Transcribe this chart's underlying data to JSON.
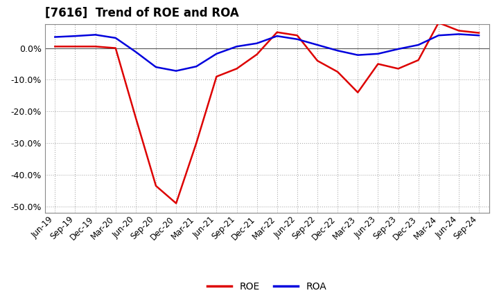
{
  "title": "[7616]  Trend of ROE and ROA",
  "labels": [
    "Jun-19",
    "Sep-19",
    "Dec-19",
    "Mar-20",
    "Jun-20",
    "Sep-20",
    "Dec-20",
    "Mar-21",
    "Jun-21",
    "Sep-21",
    "Dec-21",
    "Mar-22",
    "Jun-22",
    "Sep-22",
    "Dec-22",
    "Mar-23",
    "Jun-23",
    "Sep-23",
    "Dec-23",
    "Mar-24",
    "Jun-24",
    "Sep-24"
  ],
  "ROE": [
    0.005,
    0.005,
    0.005,
    0.0,
    -0.22,
    -0.435,
    -0.49,
    -0.3,
    -0.09,
    -0.065,
    -0.02,
    0.05,
    0.04,
    -0.04,
    -0.075,
    -0.14,
    -0.05,
    -0.065,
    -0.038,
    0.08,
    0.055,
    0.048
  ],
  "ROA": [
    0.035,
    0.038,
    0.042,
    0.032,
    -0.012,
    -0.06,
    -0.072,
    -0.058,
    -0.018,
    0.005,
    0.015,
    0.038,
    0.028,
    0.01,
    -0.008,
    -0.022,
    -0.018,
    -0.003,
    0.01,
    0.04,
    0.044,
    0.04
  ],
  "roe_color": "#dd0000",
  "roa_color": "#0000dd",
  "bg_color": "#ffffff",
  "plot_bg_color": "#ffffff",
  "grid_color": "#999999",
  "ylim_min": -0.52,
  "ylim_max": 0.075,
  "yticks": [
    -0.5,
    -0.4,
    -0.3,
    -0.2,
    -0.1,
    0.0
  ],
  "linewidth": 1.8,
  "title_fontsize": 12,
  "tick_fontsize": 8.5,
  "ytick_fontsize": 9
}
